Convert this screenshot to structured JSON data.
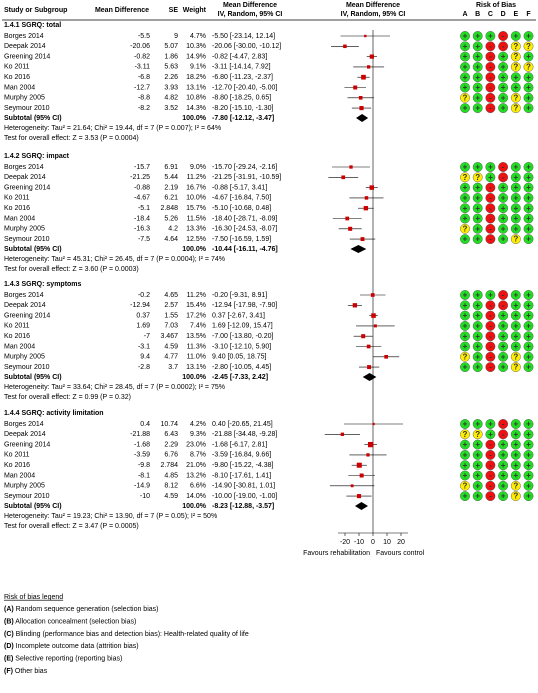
{
  "header": {
    "study": "Study or Subgroup",
    "md": "Mean Difference",
    "se": "SE",
    "weight": "Weight",
    "md2": "Mean Difference",
    "method": "IV, Random, 95% CI",
    "md3": "Mean Difference",
    "method2": "IV, Random, 95% CI",
    "rob": "Risk of Bias",
    "rob_letters": [
      "A",
      "B",
      "C",
      "D",
      "E",
      "F"
    ]
  },
  "subtotal_label": "Subtotal (95% CI)",
  "risk_colors": {
    "+": "#22dd22",
    "?": "#ffee00",
    "-": "#ee1111"
  },
  "marker_color": "#cc0000",
  "groups": [
    {
      "title": "1.4.1 SGRQ: total",
      "studies": [
        {
          "name": "Borges 2014",
          "md": -5.5,
          "se": 9,
          "weight": 4.7,
          "weight_label": "4.7%",
          "estimate_label": "-5.50 [-23.14, 12.14]",
          "ci": [
            -23.14,
            12.14
          ],
          "risk": [
            "+",
            "+",
            "+",
            "-",
            "+",
            "+"
          ]
        },
        {
          "name": "Deepak 2014",
          "md": -20.06,
          "se": 5.07,
          "weight": 10.3,
          "weight_label": "10.3%",
          "estimate_label": "-20.06 [-30.00, -10.12]",
          "ci": [
            -30.0,
            -10.12
          ],
          "risk": [
            "+",
            "+",
            "-",
            "-",
            "?",
            "?"
          ]
        },
        {
          "name": "Greening 2014",
          "md": -0.82,
          "se": 1.86,
          "weight": 14.9,
          "weight_label": "14.9%",
          "estimate_label": "-0.82 [-4.47, 2.83]",
          "ci": [
            -4.47,
            2.83
          ],
          "risk": [
            "+",
            "+",
            "-",
            "+",
            "?",
            "+"
          ]
        },
        {
          "name": "Ko 2011",
          "md": -3.11,
          "se": 5.63,
          "weight": 9.1,
          "weight_label": "9.1%",
          "estimate_label": "-3.11 [-14.14, 7.92]",
          "ci": [
            -14.14,
            7.92
          ],
          "risk": [
            "+",
            "+",
            "-",
            "+",
            "?",
            "?"
          ]
        },
        {
          "name": "Ko 2016",
          "md": -6.8,
          "se": 2.26,
          "weight": 18.2,
          "weight_label": "18.2%",
          "estimate_label": "-6.80 [-11.23, -2.37]",
          "ci": [
            -11.23,
            -2.37
          ],
          "risk": [
            "+",
            "+",
            "-",
            "+",
            "+",
            "+"
          ]
        },
        {
          "name": "Man 2004",
          "md": -12.7,
          "se": 3.93,
          "weight": 13.1,
          "weight_label": "13.1%",
          "estimate_label": "-12.70 [-20.40, -5.00]",
          "ci": [
            -20.4,
            -5.0
          ],
          "risk": [
            "+",
            "+",
            "-",
            "+",
            "+",
            "+"
          ]
        },
        {
          "name": "Murphy 2005",
          "md": -8.8,
          "se": 4.82,
          "weight": 10.8,
          "weight_label": "10.8%",
          "estimate_label": "-8.80 [-18.25, 0.65]",
          "ci": [
            -18.25,
            0.65
          ],
          "risk": [
            "?",
            "+",
            "-",
            "+",
            "?",
            "+"
          ]
        },
        {
          "name": "Seymour 2010",
          "md": -8.2,
          "se": 3.52,
          "weight": 14.3,
          "weight_label": "14.3%",
          "estimate_label": "-8.20 [-15.10, -1.30]",
          "ci": [
            -15.1,
            -1.3
          ],
          "risk": [
            "+",
            "+",
            "-",
            "+",
            "?",
            "+"
          ]
        }
      ],
      "subtotal": {
        "weight_label": "100.0%",
        "estimate_label": "-7.80 [-12.12, -3.47]",
        "md": -7.8,
        "ci": [
          -12.12,
          -3.47
        ]
      },
      "heterogeneity": "Heterogeneity: Tau² = 21.64; Chi² = 19.44, df = 7 (P = 0.007); I² = 64%",
      "overall": "Test for overall effect: Z = 3.53 (P = 0.0004)"
    },
    {
      "title": "1.4.2 SGRQ: impact",
      "studies": [
        {
          "name": "Borges 2014",
          "md": -15.7,
          "se": 6.91,
          "weight": 9.0,
          "weight_label": "9.0%",
          "estimate_label": "-15.70 [-29.24, -2.16]",
          "ci": [
            -29.24,
            -2.16
          ],
          "risk": [
            "+",
            "+",
            "+",
            "-",
            "+",
            "+"
          ]
        },
        {
          "name": "Deepak 2014",
          "md": -21.25,
          "se": 5.44,
          "weight": 11.2,
          "weight_label": "11.2%",
          "estimate_label": "-21.25 [-31.91, -10.59]",
          "ci": [
            -31.91,
            -10.59
          ],
          "risk": [
            "?",
            "?",
            "+",
            "-",
            "+",
            "+"
          ]
        },
        {
          "name": "Greening 2014",
          "md": -0.88,
          "se": 2.19,
          "weight": 16.7,
          "weight_label": "16.7%",
          "estimate_label": "-0.88 [-5.17, 3.41]",
          "ci": [
            -5.17,
            3.41
          ],
          "risk": [
            "+",
            "+",
            "-",
            "+",
            "+",
            "+"
          ]
        },
        {
          "name": "Ko 2011",
          "md": -4.67,
          "se": 6.21,
          "weight": 10.0,
          "weight_label": "10.0%",
          "estimate_label": "-4.67 [-16.84, 7.50]",
          "ci": [
            -16.84,
            7.5
          ],
          "risk": [
            "+",
            "+",
            "-",
            "+",
            "+",
            "+"
          ]
        },
        {
          "name": "Ko 2016",
          "md": -5.1,
          "se": 2.848,
          "weight": 15.7,
          "weight_label": "15.7%",
          "estimate_label": "-5.10 [-10.68, 0.48]",
          "ci": [
            -10.68,
            0.48
          ],
          "risk": [
            "+",
            "+",
            "-",
            "+",
            "+",
            "+"
          ]
        },
        {
          "name": "Man 2004",
          "md": -18.4,
          "se": 5.26,
          "weight": 11.5,
          "weight_label": "11.5%",
          "estimate_label": "-18.40 [-28.71, -8.09]",
          "ci": [
            -28.71,
            -8.09
          ],
          "risk": [
            "+",
            "+",
            "-",
            "+",
            "+",
            "+"
          ]
        },
        {
          "name": "Murphy 2005",
          "md": -16.3,
          "se": 4.2,
          "weight": 13.3,
          "weight_label": "13.3%",
          "estimate_label": "-16.30 [-24.53, -8.07]",
          "ci": [
            -24.53,
            -8.07
          ],
          "risk": [
            "?",
            "+",
            "-",
            "+",
            "+",
            "+"
          ]
        },
        {
          "name": "Seymour 2010",
          "md": -7.5,
          "se": 4.64,
          "weight": 12.5,
          "weight_label": "12.5%",
          "estimate_label": "-7.50 [-16.59, 1.59]",
          "ci": [
            -16.59,
            1.59
          ],
          "risk": [
            "+",
            "+",
            "-",
            "+",
            "?",
            "+"
          ]
        }
      ],
      "subtotal": {
        "weight_label": "100.0%",
        "estimate_label": "-10.44 [-16.11, -4.76]",
        "md": -10.44,
        "ci": [
          -16.11,
          -4.76
        ]
      },
      "heterogeneity": "Heterogeneity: Tau² = 45.31; Chi² = 26.45, df = 7 (P = 0.0004); I² = 74%",
      "overall": "Test for overall effect: Z = 3.60 (P = 0.0003)"
    },
    {
      "title": "1.4.3 SGRQ: symptoms",
      "studies": [
        {
          "name": "Borges 2014",
          "md": -0.2,
          "se": 4.65,
          "weight": 11.2,
          "weight_label": "11.2%",
          "estimate_label": "-0.20 [-9.31, 8.91]",
          "ci": [
            -9.31,
            8.91
          ],
          "risk": [
            "+",
            "+",
            "+",
            "-",
            "+",
            "+"
          ]
        },
        {
          "name": "Deepak 2014",
          "md": -12.94,
          "se": 2.57,
          "weight": 15.4,
          "weight_label": "15.4%",
          "estimate_label": "-12.94 [-17.98, -7.90]",
          "ci": [
            -17.98,
            -7.9
          ],
          "risk": [
            "+",
            "+",
            "-",
            "-",
            "+",
            "+"
          ]
        },
        {
          "name": "Greening 2014",
          "md": 0.37,
          "se": 1.55,
          "weight": 17.2,
          "weight_label": "17.2%",
          "estimate_label": "0.37 [-2.67, 3.41]",
          "ci": [
            -2.67,
            3.41
          ],
          "risk": [
            "+",
            "+",
            "-",
            "+",
            "+",
            "+"
          ]
        },
        {
          "name": "Ko 2011",
          "md": 1.69,
          "se": 7.03,
          "weight": 7.4,
          "weight_label": "7.4%",
          "estimate_label": "1.69 [-12.09, 15.47]",
          "ci": [
            -12.09,
            15.47
          ],
          "risk": [
            "+",
            "+",
            "-",
            "+",
            "+",
            "+"
          ]
        },
        {
          "name": "Ko 2016",
          "md": -7,
          "se": 3.467,
          "weight": 13.5,
          "weight_label": "13.5%",
          "estimate_label": "-7.00 [-13.80, -0.20]",
          "ci": [
            -13.8,
            -0.2
          ],
          "risk": [
            "+",
            "+",
            "-",
            "+",
            "+",
            "+"
          ]
        },
        {
          "name": "Man 2004",
          "md": -3.1,
          "se": 4.59,
          "weight": 11.3,
          "weight_label": "11.3%",
          "estimate_label": "-3.10 [-12.10, 5.90]",
          "ci": [
            -12.1,
            5.9
          ],
          "risk": [
            "+",
            "+",
            "-",
            "+",
            "+",
            "+"
          ]
        },
        {
          "name": "Murphy 2005",
          "md": 9.4,
          "se": 4.77,
          "weight": 11.0,
          "weight_label": "11.0%",
          "estimate_label": "9.40 [0.05, 18.75]",
          "ci": [
            0.05,
            18.75
          ],
          "risk": [
            "?",
            "+",
            "-",
            "+",
            "?",
            "+"
          ]
        },
        {
          "name": "Seymour 2010",
          "md": -2.8,
          "se": 3.7,
          "weight": 13.1,
          "weight_label": "13.1%",
          "estimate_label": "-2.80 [-10.05, 4.45]",
          "ci": [
            -10.05,
            4.45
          ],
          "risk": [
            "+",
            "+",
            "-",
            "+",
            "?",
            "+"
          ]
        }
      ],
      "subtotal": {
        "weight_label": "100.0%",
        "estimate_label": "-2.45 [-7.33, 2.42]",
        "md": -2.45,
        "ci": [
          -7.33,
          2.42
        ]
      },
      "heterogeneity": "Heterogeneity: Tau² = 33.64; Chi² = 28.45, df = 7 (P = 0.0002); I² = 75%",
      "overall": "Test for overall effect: Z = 0.99 (P = 0.32)"
    },
    {
      "title": "1.4.4 SGRQ: activity limitation",
      "studies": [
        {
          "name": "Borges 2014",
          "md": 0.4,
          "se": 10.74,
          "weight": 4.2,
          "weight_label": "4.2%",
          "estimate_label": "0.40 [-20.65, 21.45]",
          "ci": [
            -20.65,
            21.45
          ],
          "risk": [
            "+",
            "+",
            "+",
            "-",
            "+",
            "+"
          ]
        },
        {
          "name": "Deepak 2014",
          "md": -21.88,
          "se": 6.43,
          "weight": 9.3,
          "weight_label": "9.3%",
          "estimate_label": "-21.88 [-34.48, -9.28]",
          "ci": [
            -34.48,
            -9.28
          ],
          "risk": [
            "?",
            "?",
            "+",
            "-",
            "+",
            "+"
          ]
        },
        {
          "name": "Greening 2014",
          "md": -1.68,
          "se": 2.29,
          "weight": 23.0,
          "weight_label": "23.0%",
          "estimate_label": "-1.68 [-6.17, 2.81]",
          "ci": [
            -6.17,
            2.81
          ],
          "risk": [
            "+",
            "+",
            "-",
            "+",
            "+",
            "+"
          ]
        },
        {
          "name": "Ko 2011",
          "md": -3.59,
          "se": 6.76,
          "weight": 8.7,
          "weight_label": "8.7%",
          "estimate_label": "-3.59 [-16.84, 9.66]",
          "ci": [
            -16.84,
            9.66
          ],
          "risk": [
            "+",
            "+",
            "-",
            "+",
            "+",
            "+"
          ]
        },
        {
          "name": "Ko 2016",
          "md": -9.8,
          "se": 2.784,
          "weight": 21.0,
          "weight_label": "21.0%",
          "estimate_label": "-9.80 [-15.22, -4.38]",
          "ci": [
            -15.22,
            -4.38
          ],
          "risk": [
            "+",
            "+",
            "-",
            "+",
            "+",
            "+"
          ]
        },
        {
          "name": "Man 2004",
          "md": -8.1,
          "se": 4.85,
          "weight": 13.2,
          "weight_label": "13.2%",
          "estimate_label": "-8.10 [-17.61, 1.41]",
          "ci": [
            -17.61,
            1.41
          ],
          "risk": [
            "+",
            "+",
            "-",
            "+",
            "+",
            "+"
          ]
        },
        {
          "name": "Murphy 2005",
          "md": -14.9,
          "se": 8.12,
          "weight": 6.6,
          "weight_label": "6.6%",
          "estimate_label": "-14.90 [-30.81, 1.01]",
          "ci": [
            -30.81,
            1.01
          ],
          "risk": [
            "?",
            "+",
            "-",
            "+",
            "?",
            "+"
          ]
        },
        {
          "name": "Seymour 2010",
          "md": -10,
          "se": 4.59,
          "weight": 14.0,
          "weight_label": "14.0%",
          "estimate_label": "-10.00 [-19.00, -1.00]",
          "ci": [
            -19.0,
            -1.0
          ],
          "risk": [
            "+",
            "+",
            "-",
            "+",
            "?",
            "+"
          ]
        }
      ],
      "subtotal": {
        "weight_label": "100.0%",
        "estimate_label": "-8.23 [-12.88, -3.57]",
        "md": -8.23,
        "ci": [
          -12.88,
          -3.57
        ]
      },
      "heterogeneity": "Heterogeneity: Tau² = 19.23; Chi² = 13.90, df = 7 (P = 0.05); I² = 50%",
      "overall": "Test for overall effect: Z = 3.47 (P = 0.0005)"
    }
  ],
  "axis": {
    "xlim": [
      -25,
      25
    ],
    "xticks": [
      -20,
      -10,
      0,
      10,
      20
    ],
    "left_label": "Favours rehabilitation",
    "right_label": "Favours control"
  },
  "legend": {
    "title": "Risk of bias legend",
    "items": [
      {
        "letter": "(A)",
        "text": "Random sequence generation (selection bias)"
      },
      {
        "letter": "(B)",
        "text": "Allocation concealment (selection bias)"
      },
      {
        "letter": "(C)",
        "text": "Blinding (performance bias and detection bias): Health-related quality of life"
      },
      {
        "letter": "(D)",
        "text": "Incomplete outcome data (attrition bias)"
      },
      {
        "letter": "(E)",
        "text": "Selective reporting (reporting bias)"
      },
      {
        "letter": "(F)",
        "text": "Other bias"
      }
    ]
  }
}
